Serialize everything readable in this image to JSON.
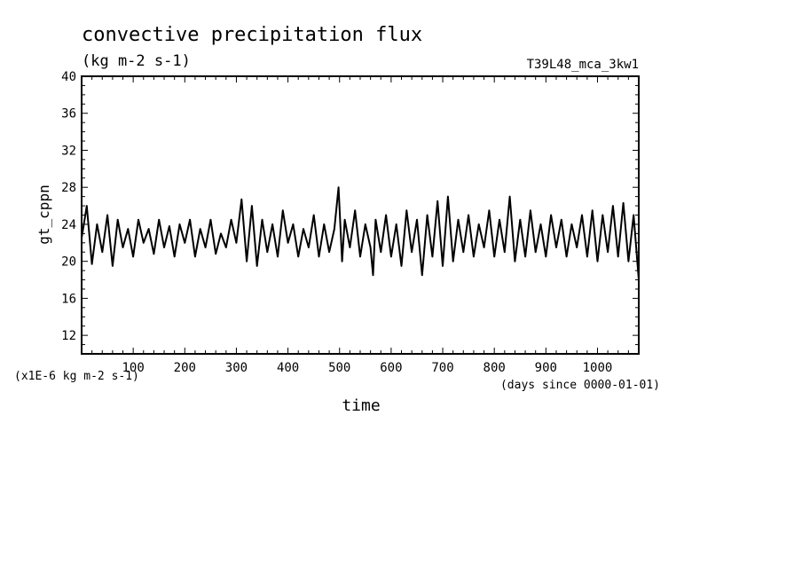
{
  "chart_data": {
    "type": "line",
    "title": "convective precipitation flux",
    "subtitle": "(kg m-2 s-1)",
    "run_label": "T39L48_mca_3kw1",
    "ylabel": "gt_cppn",
    "xlabel": "time",
    "y_scale_note": "(x1E-6 kg m-2 s-1)",
    "x_units_note": "(days since 0000-01-01)",
    "xlim": [
      0,
      1080
    ],
    "ylim": [
      10,
      40
    ],
    "x_ticks": [
      100,
      200,
      300,
      400,
      500,
      600,
      700,
      800,
      900,
      1000
    ],
    "y_ticks": [
      12,
      16,
      20,
      24,
      28,
      32,
      36,
      40
    ],
    "grid": false,
    "line_color": "#000000",
    "series": [
      {
        "x": [
          0,
          10,
          20,
          30,
          40,
          50,
          60,
          70,
          80,
          90,
          100,
          110,
          120,
          130,
          140,
          150,
          160,
          170,
          180,
          190,
          200,
          210,
          220,
          230,
          240,
          250,
          260,
          270,
          280,
          290,
          300,
          310,
          320,
          330,
          340,
          350,
          360,
          370,
          380,
          390,
          400,
          410,
          420,
          430,
          440,
          450,
          460,
          470,
          480,
          490,
          498,
          505,
          510,
          520,
          530,
          540,
          550,
          560,
          565,
          570,
          580,
          590,
          600,
          610,
          620,
          630,
          640,
          650,
          660,
          670,
          680,
          690,
          700,
          710,
          720,
          730,
          740,
          750,
          760,
          770,
          780,
          790,
          800,
          810,
          820,
          830,
          840,
          850,
          860,
          870,
          880,
          890,
          900,
          910,
          920,
          930,
          940,
          950,
          960,
          970,
          980,
          990,
          1000,
          1010,
          1020,
          1030,
          1040,
          1050,
          1060,
          1070,
          1080
        ],
        "y": [
          22.5,
          26.0,
          19.7,
          24.0,
          21.0,
          25.0,
          19.5,
          24.5,
          21.5,
          23.5,
          20.5,
          24.5,
          22.0,
          23.5,
          20.8,
          24.5,
          21.5,
          23.8,
          20.5,
          24.0,
          22.0,
          24.5,
          20.5,
          23.5,
          21.5,
          24.5,
          20.8,
          23.0,
          21.5,
          24.5,
          22.0,
          26.7,
          20.0,
          26.0,
          19.5,
          24.5,
          21.0,
          24.0,
          20.5,
          25.5,
          22.0,
          24.0,
          20.5,
          23.5,
          21.5,
          25.0,
          20.5,
          24.0,
          21.0,
          23.5,
          28.0,
          20.0,
          24.5,
          21.5,
          25.5,
          20.5,
          24.0,
          21.5,
          18.5,
          24.5,
          21.0,
          25.0,
          20.5,
          24.0,
          19.5,
          25.5,
          21.0,
          24.5,
          18.5,
          25.0,
          20.5,
          26.5,
          19.5,
          27.0,
          20.0,
          24.5,
          21.0,
          25.0,
          20.5,
          24.0,
          21.5,
          25.5,
          20.5,
          24.5,
          21.0,
          27.0,
          20.0,
          24.5,
          20.5,
          25.5,
          21.0,
          24.0,
          20.5,
          25.0,
          21.5,
          24.5,
          20.5,
          24.0,
          21.5,
          25.0,
          20.5,
          25.5,
          20.0,
          25.0,
          21.0,
          26.0,
          20.5,
          26.3,
          20.0,
          25.0,
          18.0
        ]
      }
    ]
  }
}
